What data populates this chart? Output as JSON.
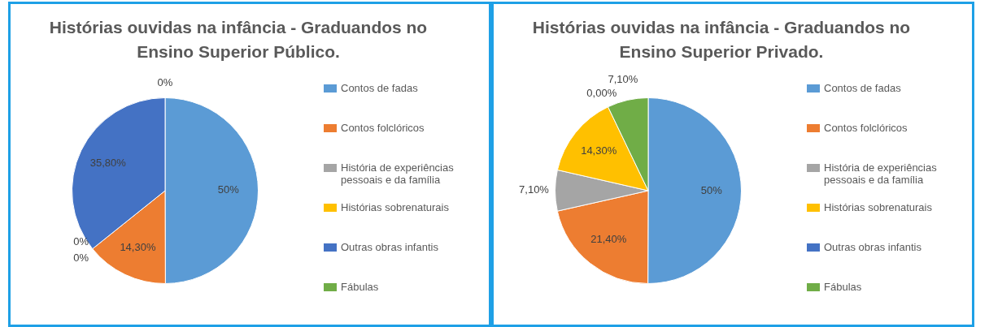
{
  "chart_data": [
    {
      "type": "pie",
      "title": "Histórias ouvidas na infância - Graduandos no Ensino Superior Público.",
      "categories": [
        "Contos de fadas",
        "Contos folclóricos",
        "História de experiências pessoais e da família",
        "Histórias sobrenaturais",
        "Outras obras infantis",
        "Fábulas"
      ],
      "values": [
        50,
        14.3,
        0,
        0,
        35.8,
        0
      ],
      "value_labels": [
        "50%",
        "14,30%",
        "0%",
        "0%",
        "35,80%",
        "0%"
      ],
      "colors": [
        "#5b9bd5",
        "#ed7d31",
        "#a5a5a5",
        "#ffc000",
        "#4472c4",
        "#70ad47"
      ],
      "legend": "right"
    },
    {
      "type": "pie",
      "title": "Histórias ouvidas na infância - Graduandos no Ensino Superior Privado.",
      "categories": [
        "Contos de fadas",
        "Contos folclóricos",
        "História de experiências pessoais e da família",
        "Histórias sobrenaturais",
        "Outras obras infantis",
        "Fábulas"
      ],
      "values": [
        50,
        21.4,
        7.1,
        14.3,
        0,
        7.1
      ],
      "value_labels": [
        "50%",
        "21,40%",
        "7,10%",
        "14,30%",
        "0,00%",
        "7,10%"
      ],
      "colors": [
        "#5b9bd5",
        "#ed7d31",
        "#a5a5a5",
        "#ffc000",
        "#4472c4",
        "#70ad47"
      ],
      "legend": "right"
    }
  ]
}
